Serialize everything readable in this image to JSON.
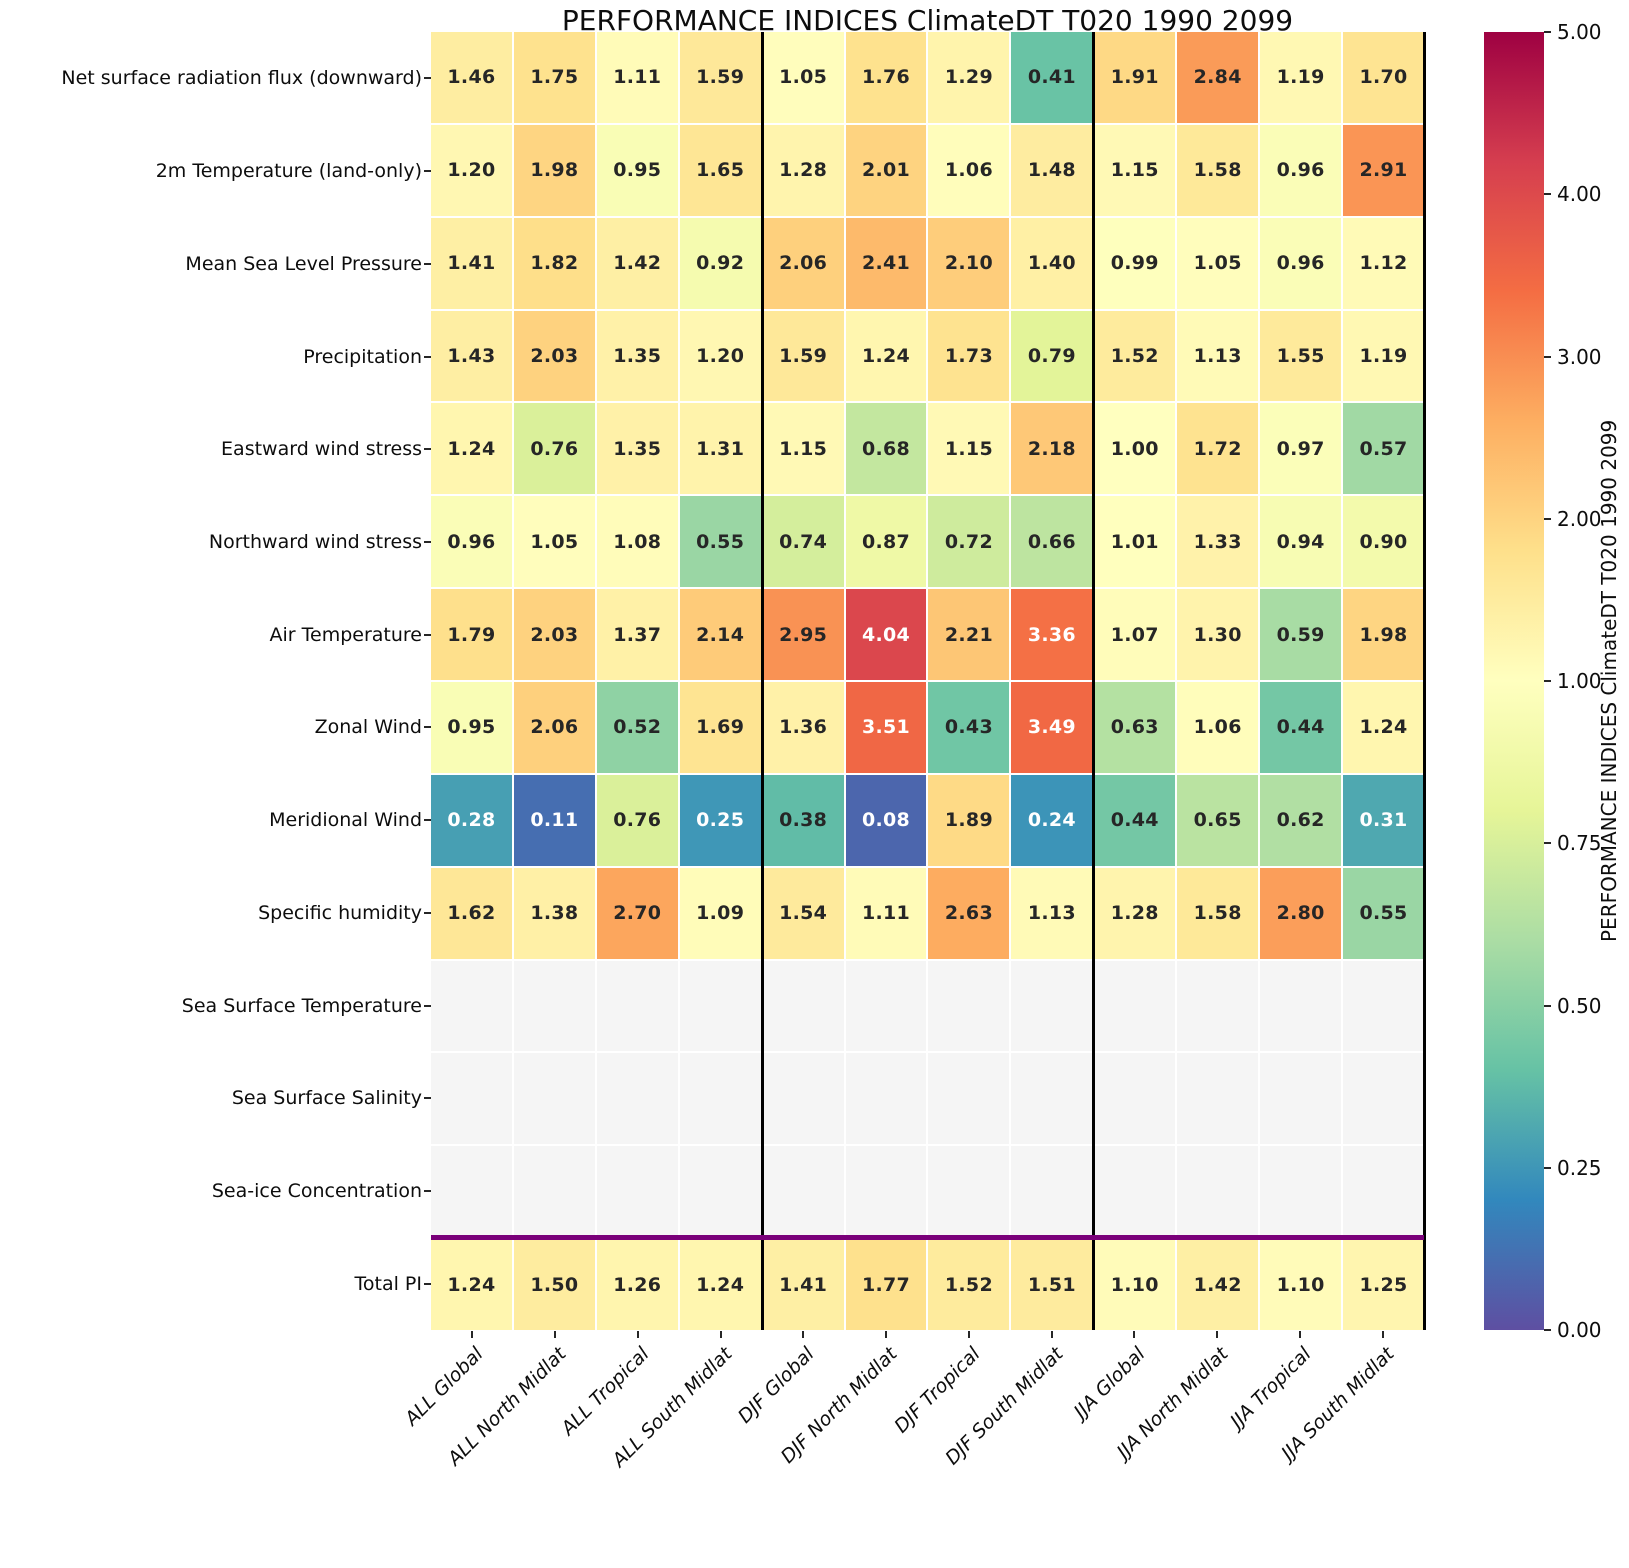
{
  "title": "PERFORMANCE INDICES ClimateDT T020 1990 2099",
  "colorbar": {
    "label": "PERFORMANCE INDICES ClimateDT T020 1990 2099",
    "ticks": [
      "5.00",
      "4.00",
      "3.00",
      "2.00",
      "1.00",
      "0.75",
      "0.50",
      "0.25",
      "0.00"
    ]
  },
  "chart_data": {
    "type": "heatmap",
    "title": "PERFORMANCE INDICES ClimateDT T020 1990 2099",
    "rows": [
      "Net surface radiation flux (downward)",
      "2m Temperature (land-only)",
      "Mean Sea Level Pressure",
      "Precipitation",
      "Eastward wind stress",
      "Northward wind stress",
      "Air Temperature",
      "Zonal Wind",
      "Meridional Wind",
      "Specific humidity",
      "Sea Surface Temperature",
      "Sea Surface Salinity",
      "Sea-ice Concentration",
      "Total PI"
    ],
    "columns": [
      "ALL Global",
      "ALL North Midlat",
      "ALL Tropical",
      "ALL South Midlat",
      "DJF Global",
      "DJF North Midlat",
      "DJF Tropical",
      "DJF South Midlat",
      "JJA Global",
      "JJA North Midlat",
      "JJA Tropical",
      "JJA South Midlat"
    ],
    "values": [
      [
        1.46,
        1.75,
        1.11,
        1.59,
        1.05,
        1.76,
        1.29,
        0.41,
        1.91,
        2.84,
        1.19,
        1.7
      ],
      [
        1.2,
        1.98,
        0.95,
        1.65,
        1.28,
        2.01,
        1.06,
        1.48,
        1.15,
        1.58,
        0.96,
        2.91
      ],
      [
        1.41,
        1.82,
        1.42,
        0.92,
        2.06,
        2.41,
        2.1,
        1.4,
        0.99,
        1.05,
        0.96,
        1.12
      ],
      [
        1.43,
        2.03,
        1.35,
        1.2,
        1.59,
        1.24,
        1.73,
        0.79,
        1.52,
        1.13,
        1.55,
        1.19
      ],
      [
        1.24,
        0.76,
        1.35,
        1.31,
        1.15,
        0.68,
        1.15,
        2.18,
        1.0,
        1.72,
        0.97,
        0.57
      ],
      [
        0.96,
        1.05,
        1.08,
        0.55,
        0.74,
        0.87,
        0.72,
        0.66,
        1.01,
        1.33,
        0.94,
        0.9
      ],
      [
        1.79,
        2.03,
        1.37,
        2.14,
        2.95,
        4.04,
        2.21,
        3.36,
        1.07,
        1.3,
        0.59,
        1.98
      ],
      [
        0.95,
        2.06,
        0.52,
        1.69,
        1.36,
        3.51,
        0.43,
        3.49,
        0.63,
        1.06,
        0.44,
        1.24
      ],
      [
        0.28,
        0.11,
        0.76,
        0.25,
        0.38,
        0.08,
        1.89,
        0.24,
        0.44,
        0.65,
        0.62,
        0.31
      ],
      [
        1.62,
        1.38,
        2.7,
        1.09,
        1.54,
        1.11,
        2.63,
        1.13,
        1.28,
        1.58,
        2.8,
        0.55
      ],
      null,
      null,
      null,
      [
        1.24,
        1.5,
        1.26,
        1.24,
        1.41,
        1.77,
        1.52,
        1.51,
        1.1,
        1.42,
        1.1,
        1.25
      ]
    ],
    "vmin": 0,
    "vmax": 5,
    "norm": "piecewise: 0-1 maps to lower half of scale, 1-5 maps to upper half",
    "palette_spectral_r": [
      "#5e4fa2",
      "#3288bd",
      "#66c2a5",
      "#abdda4",
      "#e6f598",
      "#ffffbf",
      "#fee08b",
      "#fdae61",
      "#f46d43",
      "#d53e4f",
      "#9e0142"
    ],
    "missing_color": "#f5f5f5",
    "annotation_dark_text": "#262626",
    "annotation_light_text": "#ffffff",
    "group_separators_after_columns": [
      4,
      8,
      12
    ],
    "group_separator_color": "#000000",
    "total_row_separator_color": "#7a0079",
    "legend_position": "right-colorbar",
    "grid": "white 2px cell gaps"
  }
}
